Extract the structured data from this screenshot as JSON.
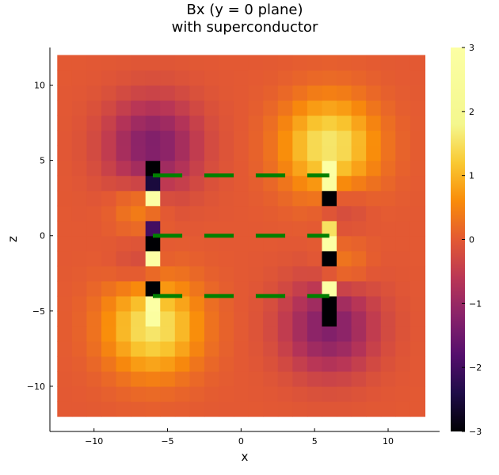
{
  "chart_data": {
    "type": "heatmap",
    "title_line1": "Bx (y = 0 plane)",
    "title_line2": "with superconductor",
    "xlabel": "x",
    "ylabel": "z",
    "xlim": [
      -13,
      13.5
    ],
    "ylim": [
      -13,
      12.5
    ],
    "data_extent": {
      "x": [
        -12.5,
        12.5
      ],
      "z": [
        -12,
        12
      ]
    },
    "grid": {
      "nx": 25,
      "nz": 24
    },
    "xticks": [
      -10,
      -5,
      0,
      5,
      10
    ],
    "xtick_labels": [
      "−10",
      "−5",
      "0",
      "5",
      "10"
    ],
    "yticks": [
      -10,
      -5,
      0,
      5,
      10
    ],
    "ytick_labels": [
      "−10",
      "−5",
      "0",
      "5",
      "10"
    ],
    "colorbar": {
      "colormap": "inferno",
      "clim": [
        -3,
        3
      ],
      "ticks": [
        -3,
        -2,
        -1,
        0,
        1,
        2,
        3
      ],
      "tick_labels": [
        "−3",
        "−2",
        "−1",
        "0",
        "1",
        "2",
        "3"
      ]
    },
    "field_model": {
      "description_of_sources": "dipole-like field from segments at z = 4, 0, -4 near x = +-6",
      "strong_cells": [
        {
          "x": -6,
          "z": 5,
          "value": -3
        },
        {
          "x": -6,
          "z": 4,
          "value": -2.5
        },
        {
          "x": -6,
          "z": 3,
          "value": 3
        },
        {
          "x": -6,
          "z": 1,
          "value": -2
        },
        {
          "x": -6,
          "z": 0,
          "value": -3
        },
        {
          "x": -6,
          "z": -1,
          "value": 3
        },
        {
          "x": -6,
          "z": -3,
          "value": -3
        },
        {
          "x": -6,
          "z": -4,
          "value": 3
        },
        {
          "x": -6,
          "z": -5,
          "value": 2.8
        },
        {
          "x": 6,
          "z": 5,
          "value": 3
        },
        {
          "x": 6,
          "z": 4,
          "value": 2.8
        },
        {
          "x": 6,
          "z": 3,
          "value": -3
        },
        {
          "x": 6,
          "z": 1,
          "value": 1.5
        },
        {
          "x": 6,
          "z": 0,
          "value": 3
        },
        {
          "x": 6,
          "z": -1,
          "value": -3
        },
        {
          "x": 6,
          "z": -3,
          "value": 3
        },
        {
          "x": 6,
          "z": -4,
          "value": -3
        },
        {
          "x": 6,
          "z": -5,
          "value": -3
        }
      ]
    },
    "segments": {
      "color": "#008000",
      "z_levels": [
        4,
        0,
        -4
      ],
      "x_ranges": [
        [
          -6,
          -4
        ],
        [
          -2.5,
          -0.5
        ],
        [
          1,
          3
        ],
        [
          4.5,
          6
        ]
      ]
    }
  }
}
